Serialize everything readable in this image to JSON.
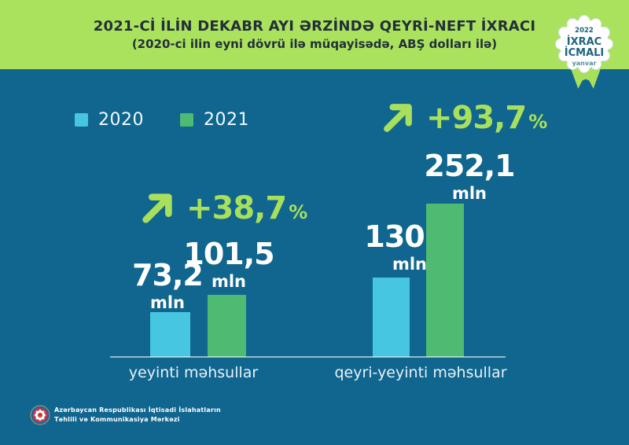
{
  "header": {
    "title": "2021-Cİ İLİN DEKABR AYI ƏRZİNDƏ QEYRİ-NEFT İXRACI",
    "subtitle": "(2020-ci ilin eyni dövrü ilə müqayisədə, ABŞ dolları ilə)"
  },
  "badge": {
    "year": "2022",
    "title_line1": "İXRAC",
    "title_line2": "İCMALI",
    "month": "yanvar"
  },
  "legend": {
    "items": [
      {
        "label": "2020",
        "color": "#47c6e2"
      },
      {
        "label": "2021",
        "color": "#4fba72"
      }
    ]
  },
  "chart_data": {
    "type": "bar",
    "title": "2021-ci ilin dekabr ayı ərzində qeyri-neft ixracı",
    "categories": [
      "yeyinti məhsullar",
      "qeyri-yeyinti məhsullar"
    ],
    "series": [
      {
        "name": "2020",
        "color": "#47c6e2",
        "values": [
          73.2,
          130.2
        ],
        "labels": [
          "73,2",
          "130,2"
        ]
      },
      {
        "name": "2021",
        "color": "#4fba72",
        "values": [
          101.5,
          252.1
        ],
        "labels": [
          "101,5",
          "252,1"
        ]
      }
    ],
    "unit_label": "mln",
    "growth_labels": [
      "+38,7",
      "+93,7"
    ],
    "percent_sign": "%",
    "ylim": [
      0,
      260
    ],
    "grid": false,
    "legend_position": "top-left"
  },
  "footer": {
    "org_line1": "Azərbaycan Respublikası İqtisadi İslahatların",
    "org_line2": "Təhlili və Kommunikasiya Mərkəzi"
  },
  "colors": {
    "background": "#10668e",
    "header_background": "#abe25d",
    "accent_lime": "#a9e05b",
    "bar_2020": "#47c6e2",
    "bar_2021": "#4fba72",
    "title_text": "#232f3b",
    "badge_text": "#1d6480",
    "text": "#ffffff"
  }
}
